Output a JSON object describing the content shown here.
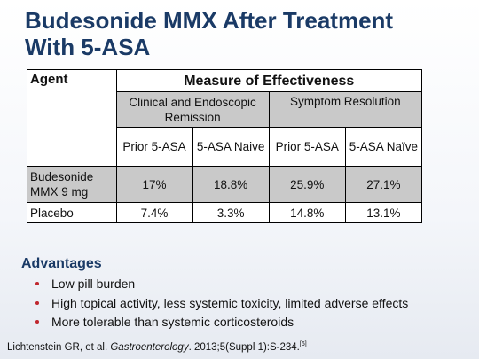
{
  "title": {
    "lines": [
      "Budesonide MMX After Treatment",
      "With 5-ASA"
    ]
  },
  "table": {
    "header": {
      "agent": "Agent",
      "measure": "Measure of Effectiveness"
    },
    "groups": [
      "Clinical and Endoscopic Remission",
      "Symptom Resolution"
    ],
    "subgroups": [
      "Prior 5-ASA",
      "5-ASA Naive",
      "Prior 5-ASA",
      "5-ASA Naïve"
    ],
    "rows": [
      [
        "Budesonide MMX 9 mg",
        "17%",
        "18.8%",
        "25.9%",
        "27.1%"
      ],
      [
        "Placebo",
        "7.4%",
        "3.3%",
        "14.8%",
        "13.1%"
      ]
    ]
  },
  "advantages": {
    "heading": "Advantages",
    "items": [
      "Low pill burden",
      "High topical activity, less systemic toxicity, limited adverse effects",
      "More tolerable than systemic corticosteroids"
    ]
  },
  "reference": {
    "authors": "Lichtenstein GR, et al.",
    "journal": "Gastroenterology",
    "details": ". 2013;5(Suppl 1):S-234.",
    "ref": "[6]"
  }
}
